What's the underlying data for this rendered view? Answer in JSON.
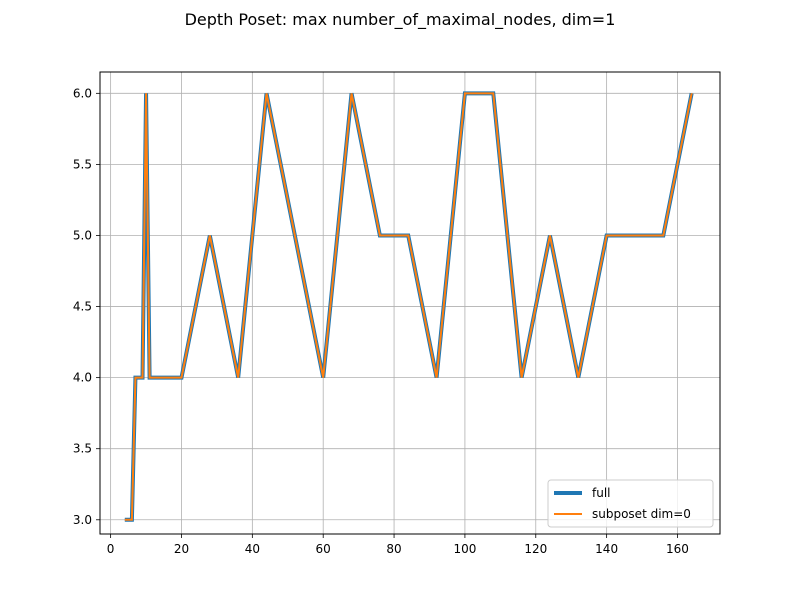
{
  "chart_data": {
    "type": "line",
    "title": "Depth Poset: max number_of_maximal_nodes, dim=1",
    "xlabel": "",
    "ylabel": "",
    "xlim": [
      -3.0,
      172.0
    ],
    "ylim": [
      2.9,
      6.15
    ],
    "grid": true,
    "legend_position": "lower-right",
    "x_ticks": [
      0,
      20,
      40,
      60,
      80,
      100,
      120,
      140,
      160
    ],
    "y_ticks": [
      3.0,
      3.5,
      4.0,
      4.5,
      5.0,
      5.5,
      6.0
    ],
    "x_tick_labels": [
      "0",
      "20",
      "40",
      "60",
      "80",
      "100",
      "120",
      "140",
      "160"
    ],
    "y_tick_labels": [
      "3.0",
      "3.5",
      "4.0",
      "4.5",
      "5.0",
      "5.5",
      "6.0"
    ],
    "series": [
      {
        "name": "full",
        "color": "#1f77b4",
        "x": [
          4,
          6,
          7,
          9,
          10,
          11,
          12,
          20,
          28,
          36,
          44,
          52,
          60,
          68,
          76,
          84,
          92,
          100,
          108,
          116,
          124,
          132,
          140,
          148,
          156,
          164
        ],
        "y": [
          3,
          3,
          4,
          4,
          6,
          4,
          4,
          4,
          5,
          4,
          6,
          5,
          4,
          6,
          5,
          5,
          4,
          6,
          6,
          4,
          5,
          4,
          5,
          5,
          5,
          6
        ]
      },
      {
        "name": "subposet dim=0",
        "color": "#ff7f0e",
        "x": [
          4,
          6,
          7,
          9,
          10,
          11,
          12,
          20,
          28,
          36,
          44,
          52,
          60,
          68,
          76,
          84,
          92,
          100,
          108,
          116,
          124,
          132,
          140,
          148,
          156,
          164
        ],
        "y": [
          3,
          3,
          4,
          4,
          6,
          4,
          4,
          4,
          5,
          4,
          6,
          5,
          4,
          6,
          5,
          5,
          4,
          6,
          6,
          4,
          5,
          4,
          5,
          5,
          5,
          6
        ]
      }
    ]
  }
}
